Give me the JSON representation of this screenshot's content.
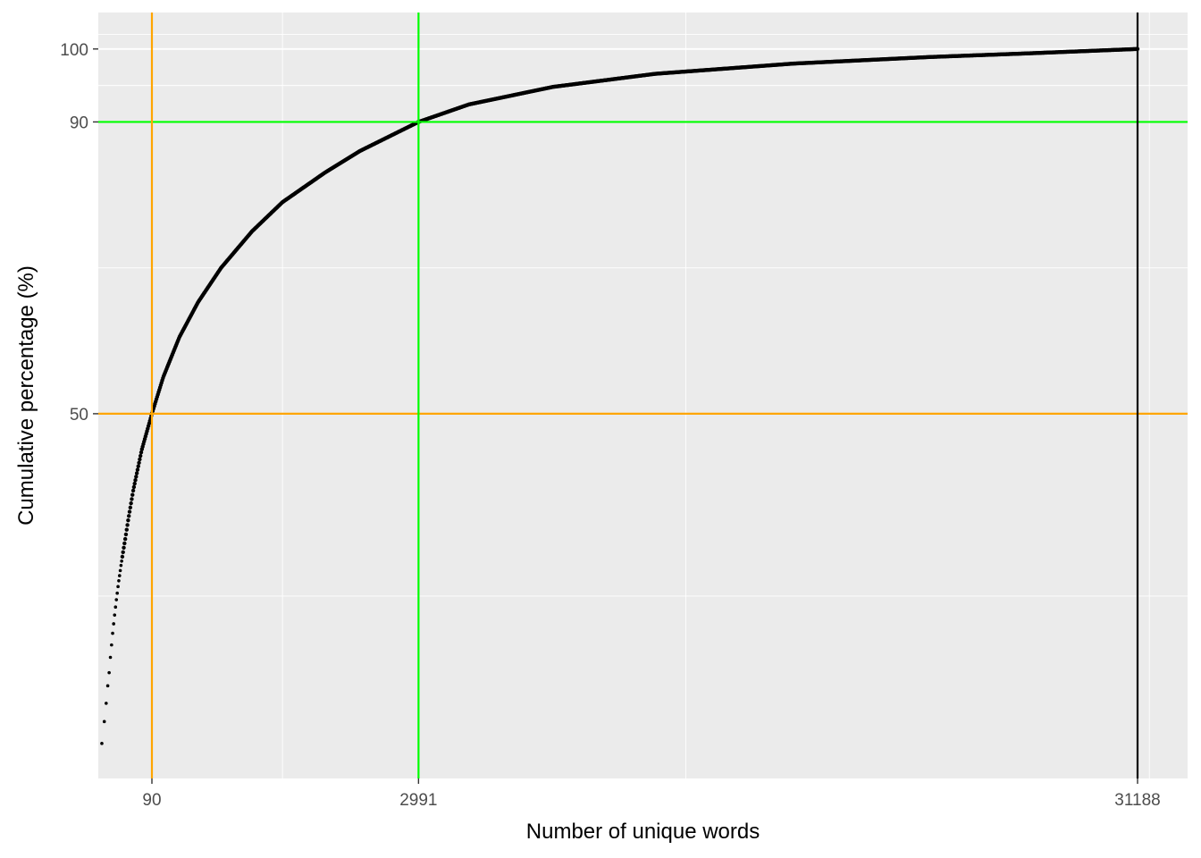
{
  "chart_data": {
    "type": "scatter",
    "title": "",
    "xlabel": "Number of unique words",
    "ylabel": "Cumulative percentage (%)",
    "x_scale": "sqrt",
    "xlim": [
      0,
      32000
    ],
    "ylim": [
      0,
      105
    ],
    "x_ticks": [
      90,
      2991,
      31188
    ],
    "x_tick_labels": [
      "90",
      "2991",
      "31188"
    ],
    "y_ticks": [
      50,
      90,
      100
    ],
    "y_tick_labels": [
      "50",
      "90",
      "100"
    ],
    "grid": true,
    "legend": "none",
    "reference_lines": {
      "vertical": [
        {
          "x": 90,
          "color": "#FFA500"
        },
        {
          "x": 2991,
          "color": "#00FF00"
        },
        {
          "x": 31188,
          "color": "#000000"
        }
      ],
      "horizontal": [
        {
          "y": 50,
          "color": "#FFA500"
        },
        {
          "y": 90,
          "color": "#00FF00"
        }
      ]
    },
    "series": [
      {
        "x": [
          1,
          2,
          3,
          4,
          5,
          6,
          7,
          8,
          9,
          10,
          11,
          12,
          13,
          14,
          15,
          16,
          17,
          18,
          19,
          20,
          22,
          25,
          30,
          40,
          60,
          90,
          130,
          200,
          300,
          450,
          700,
          1000,
          1500,
          2000,
          2991,
          4000,
          6000,
          9000,
          14000,
          20000,
          25000,
          31188
        ],
        "y": [
          4.8,
          7.8,
          10.3,
          12.7,
          14.5,
          16.6,
          18.3,
          19.9,
          21.2,
          22.4,
          23.5,
          24.5,
          25.4,
          26.3,
          27.1,
          27.8,
          28.5,
          29.2,
          29.8,
          30.4,
          31.5,
          33.0,
          35.5,
          39.5,
          45.0,
          50.0,
          55.0,
          60.5,
          65.3,
          70.0,
          75.0,
          79.0,
          83.0,
          86.0,
          90.0,
          92.4,
          94.8,
          96.6,
          98.0,
          98.9,
          99.4,
          100.0
        ]
      }
    ]
  }
}
